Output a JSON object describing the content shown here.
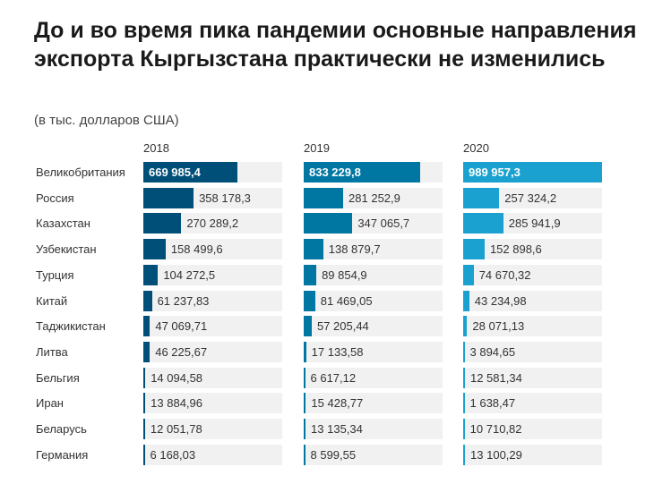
{
  "chart_data": {
    "type": "bar",
    "title": "До и во время пика пандемии основные направления экспорта Кыргызстана практически не изменились",
    "subtitle": "(в тыс. долларов США)",
    "categories": [
      "Великобритания",
      "Россия",
      "Казахстан",
      "Узбекистан",
      "Турция",
      "Китай",
      "Таджикистан",
      "Литва",
      "Бельгия",
      "Иран",
      "Беларусь",
      "Германия"
    ],
    "series": [
      {
        "name": "2018",
        "color": "#004f78",
        "values": [
          669985.4,
          358178.3,
          270289.2,
          158499.6,
          104272.5,
          61237.83,
          47069.71,
          46225.67,
          14094.58,
          13884.96,
          12051.78,
          6168.03
        ],
        "labels": [
          "669 985,4",
          "358 178,3",
          "270 289,2",
          "158 499,6",
          "104 272,5",
          "61 237,83",
          "47 069,71",
          "46 225,67",
          "14 094,58",
          "13 884,96",
          "12 051,78",
          "6 168,03"
        ]
      },
      {
        "name": "2019",
        "color": "#0077a2",
        "values": [
          833229.8,
          281252.9,
          347065.7,
          138879.7,
          89854.9,
          81469.05,
          57205.44,
          17133.58,
          6617.12,
          15428.77,
          13135.34,
          8599.55
        ],
        "labels": [
          "833 229,8",
          "281 252,9",
          "347 065,7",
          "138 879,7",
          "89 854,9",
          "81 469,05",
          "57 205,44",
          "17 133,58",
          "6 617,12",
          "15 428,77",
          "13 135,34",
          "8 599,55"
        ]
      },
      {
        "name": "2020",
        "color": "#1aa1cf",
        "values": [
          989957.3,
          257324.2,
          285941.9,
          152898.6,
          74670.32,
          43234.98,
          28071.13,
          3894.65,
          12581.34,
          1638.47,
          10710.82,
          13100.29
        ],
        "labels": [
          "989 957,3",
          "257 324,2",
          "285 941,9",
          "152 898,6",
          "74 670,32",
          "43 234,98",
          "28 071,13",
          "3 894,65",
          "12 581,34",
          "1 638,47",
          "10 710,82",
          "13 100,29"
        ]
      }
    ],
    "xlim": [
      0,
      990000
    ]
  }
}
